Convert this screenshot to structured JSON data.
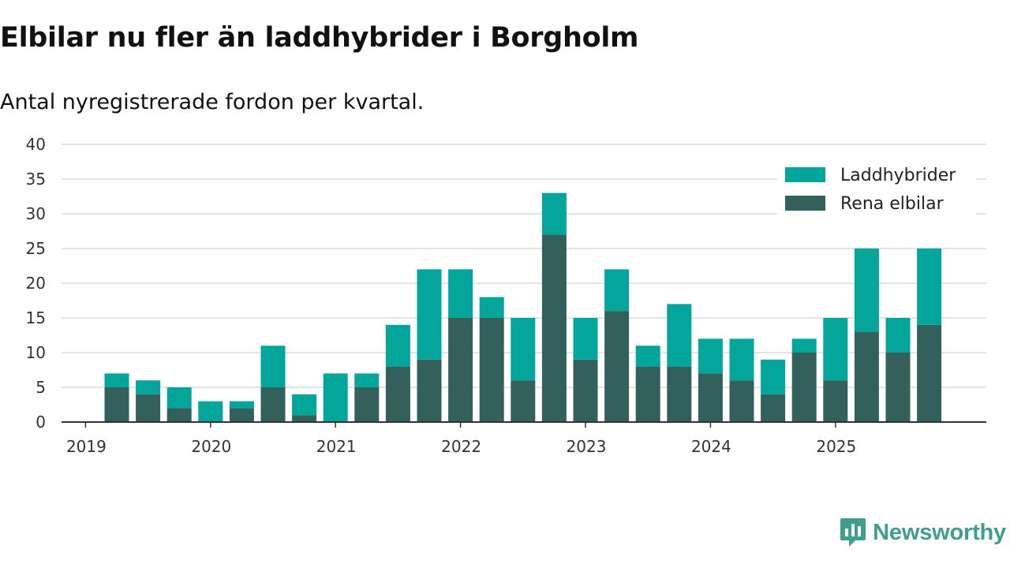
{
  "title": "Elbilar nu fler än laddhybrider i Borgholm",
  "subtitle": "Antal nyregistrerade fordon per kvartal.",
  "brand": {
    "name": "Newsworthy",
    "icon": "newsworthy-logo-icon"
  },
  "colors": {
    "laddhybrider": "#04a59b",
    "rena_elbilar": "#33605a",
    "grid": "#dcdcdc",
    "axis": "#333333"
  },
  "chart_data": {
    "type": "bar",
    "stacked": true,
    "categories": [
      "2019 Q2",
      "2019 Q3",
      "2019 Q4",
      "2020 Q1",
      "2020 Q2",
      "2020 Q3",
      "2020 Q4",
      "2021 Q1",
      "2021 Q2",
      "2021 Q3",
      "2021 Q4",
      "2022 Q1",
      "2022 Q2",
      "2022 Q3",
      "2022 Q4",
      "2023 Q1",
      "2023 Q2",
      "2023 Q3",
      "2023 Q4",
      "2024 Q1",
      "2024 Q2",
      "2024 Q3",
      "2024 Q4",
      "2025 Q1",
      "2025 Q2",
      "2025 Q3",
      "2025 Q4"
    ],
    "series": [
      {
        "name": "Rena elbilar",
        "values": [
          5,
          4,
          2,
          0,
          2,
          5,
          1,
          0,
          5,
          8,
          9,
          15,
          15,
          6,
          27,
          9,
          16,
          8,
          8,
          7,
          6,
          4,
          10,
          6,
          13,
          10,
          14
        ]
      },
      {
        "name": "Laddhybrider",
        "values": [
          2,
          2,
          3,
          3,
          1,
          6,
          3,
          7,
          2,
          6,
          13,
          7,
          3,
          9,
          6,
          6,
          6,
          3,
          9,
          5,
          6,
          5,
          2,
          9,
          12,
          5,
          11
        ]
      }
    ],
    "x_tick_labels": [
      "2019",
      "2020",
      "2021",
      "2022",
      "2023",
      "2024",
      "2025"
    ],
    "y_ticks": [
      0,
      5,
      10,
      15,
      20,
      25,
      30,
      35,
      40
    ],
    "ylim": [
      0,
      40
    ],
    "grid": true,
    "legend": {
      "position": "top-right",
      "order": [
        "Laddhybrider",
        "Rena elbilar"
      ]
    }
  }
}
